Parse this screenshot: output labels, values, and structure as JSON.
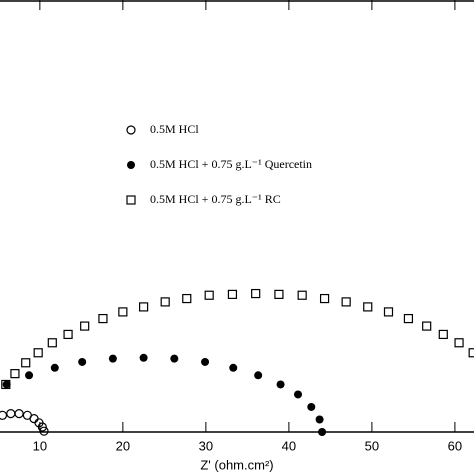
{
  "chart_data": {
    "type": "scatter",
    "x_label": "Z' (ohm.cm²)",
    "xlim": [
      5.2,
      62.3
    ],
    "ylim": [
      0,
      51.8
    ],
    "xticks": [
      10,
      20,
      30,
      40,
      50,
      60
    ],
    "series": [
      {
        "name": "0.5M HCl",
        "marker": "open-circle",
        "color": "#000000",
        "x": [
          5.5,
          6.5,
          7.5,
          8.5,
          9.3,
          9.9,
          10.3,
          10.5
        ],
        "values": [
          2.0,
          2.2,
          2.2,
          2.0,
          1.6,
          1.1,
          0.6,
          0.1
        ]
      },
      {
        "name": "0.5M HCl + 0.75 g.L⁻¹ Quercetin",
        "marker": "filled-circle",
        "color": "#000000",
        "x": [
          6.0,
          8.7,
          11.8,
          15.1,
          18.8,
          22.5,
          26.2,
          29.9,
          33.3,
          36.3,
          39.0,
          41.1,
          42.7,
          43.7,
          44.0
        ],
        "values": [
          5.7,
          6.8,
          7.7,
          8.4,
          8.8,
          8.9,
          8.8,
          8.4,
          7.7,
          6.8,
          5.7,
          4.5,
          3.0,
          1.5,
          0
        ]
      },
      {
        "name": "0.5M HCl + 0.75 g.L⁻¹ RC",
        "marker": "open-square",
        "color": "#000000",
        "x": [
          5.9,
          7.0,
          8.3,
          9.8,
          11.5,
          13.4,
          15.4,
          17.6,
          20.0,
          22.5,
          25.1,
          27.7,
          30.4,
          33.2,
          36.0,
          38.8,
          41.6,
          44.3,
          46.9,
          49.5,
          52.0,
          54.4,
          56.6,
          58.6,
          60.5,
          62.2
        ],
        "values": [
          5.7,
          7.0,
          8.3,
          9.5,
          10.7,
          11.7,
          12.7,
          13.6,
          14.4,
          15.0,
          15.6,
          16.0,
          16.4,
          16.5,
          16.6,
          16.5,
          16.4,
          16.0,
          15.6,
          15.0,
          14.4,
          13.6,
          12.7,
          11.7,
          10.7,
          9.5
        ]
      }
    ]
  }
}
